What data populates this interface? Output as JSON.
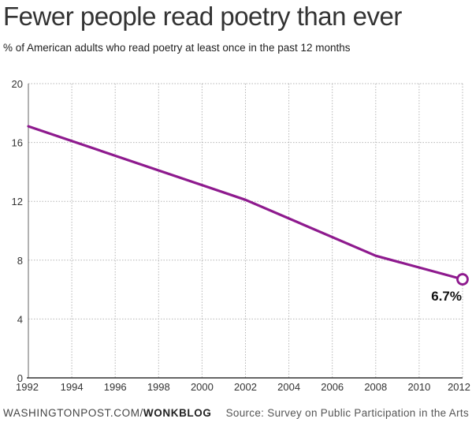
{
  "chart_data": {
    "type": "line",
    "title": "Fewer people read poetry than ever",
    "subtitle": "% of American adults who read poetry at least once in the past 12 months",
    "x": [
      1992,
      2002,
      2008,
      2012
    ],
    "series": [
      {
        "values": [
          17.1,
          12.1,
          8.3,
          6.7
        ]
      }
    ],
    "xlim": [
      1992,
      2012
    ],
    "ylim": [
      0,
      20
    ],
    "xticks": [
      1992,
      1994,
      1996,
      1998,
      2000,
      2002,
      2004,
      2006,
      2008,
      2010,
      2012
    ],
    "yticks": [
      0,
      4,
      8,
      12,
      16,
      20
    ],
    "grid": true,
    "annotations": [
      {
        "x": 2012,
        "y": 6.7,
        "text": "6.7%"
      }
    ],
    "colors": {
      "line": "#8e1a8e",
      "grid": "#b5b5b5"
    }
  },
  "footer": {
    "source_site": "WASHINGTONPOST.COM/",
    "source_blog": "WONKBLOG",
    "source_credit": "Source: Survey on Public Participation in the Arts"
  }
}
